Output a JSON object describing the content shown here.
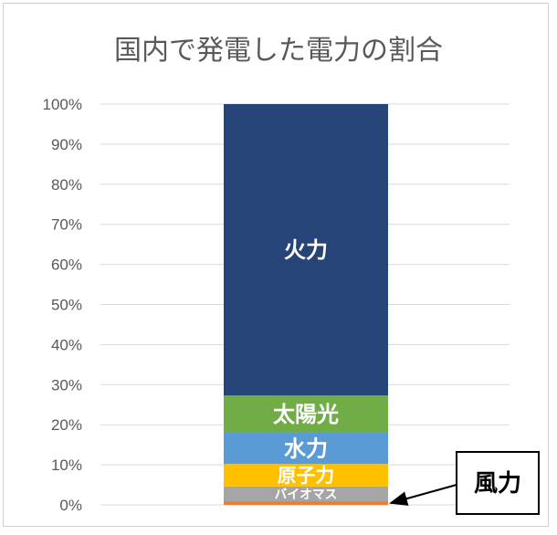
{
  "chart_data": {
    "type": "bar",
    "stacked": true,
    "title": "国内で発電した電力の割合",
    "xlabel": "",
    "ylabel": "",
    "ylim": [
      0,
      100
    ],
    "y_ticks": [
      "0%",
      "10%",
      "20%",
      "30%",
      "40%",
      "50%",
      "60%",
      "70%",
      "80%",
      "90%",
      "100%"
    ],
    "grid": true,
    "segments": [
      {
        "name": "風力",
        "value": 0.9,
        "color": "#ED7D31",
        "label_shown": false
      },
      {
        "name": "バイオマス",
        "value": 3.7,
        "color": "#A5A5A5",
        "label_shown": true
      },
      {
        "name": "原子力",
        "value": 5.6,
        "color": "#FFC000",
        "label_shown": true
      },
      {
        "name": "水力",
        "value": 7.8,
        "color": "#5B9BD5",
        "label_shown": true
      },
      {
        "name": "太陽光",
        "value": 9.3,
        "color": "#70AD47",
        "label_shown": true
      },
      {
        "name": "火力",
        "value": 72.7,
        "color": "#264478",
        "label_shown": true
      }
    ],
    "callout": {
      "text": "風力",
      "target": "風力"
    }
  }
}
